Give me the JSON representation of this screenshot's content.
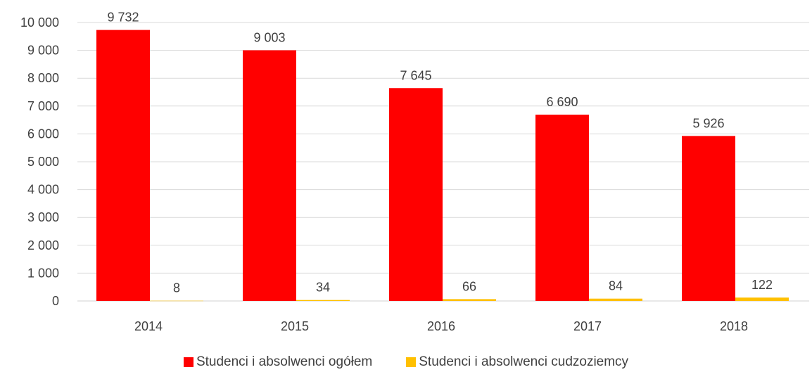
{
  "chart_data": {
    "type": "bar",
    "categories": [
      "2014",
      "2015",
      "2016",
      "2017",
      "2018"
    ],
    "series": [
      {
        "name": "Studenci i absolwenci ogółem",
        "color": "#FF0000",
        "values": [
          9732,
          9003,
          7645,
          6690,
          5926
        ]
      },
      {
        "name": "Studenci i absolwenci cudzoziemcy",
        "color": "#FFC000",
        "values": [
          8,
          34,
          66,
          84,
          122
        ]
      }
    ],
    "data_labels": [
      [
        "9 732",
        "9 003",
        "7 645",
        "6 690",
        "5 926"
      ],
      [
        "8",
        "34",
        "66",
        "84",
        "122"
      ]
    ],
    "y_ticks": [
      {
        "value": 0,
        "label": "0"
      },
      {
        "value": 1000,
        "label": "1 000"
      },
      {
        "value": 2000,
        "label": "2 000"
      },
      {
        "value": 3000,
        "label": "3 000"
      },
      {
        "value": 4000,
        "label": "4 000"
      },
      {
        "value": 5000,
        "label": "5 000"
      },
      {
        "value": 6000,
        "label": "6 000"
      },
      {
        "value": 7000,
        "label": "7 000"
      },
      {
        "value": 8000,
        "label": "8 000"
      },
      {
        "value": 9000,
        "label": "9 000"
      },
      {
        "value": 10000,
        "label": "10 000"
      }
    ],
    "ylim": [
      0,
      10000
    ],
    "grid": true,
    "legend_position": "bottom",
    "title": "",
    "xlabel": "",
    "ylabel": ""
  }
}
